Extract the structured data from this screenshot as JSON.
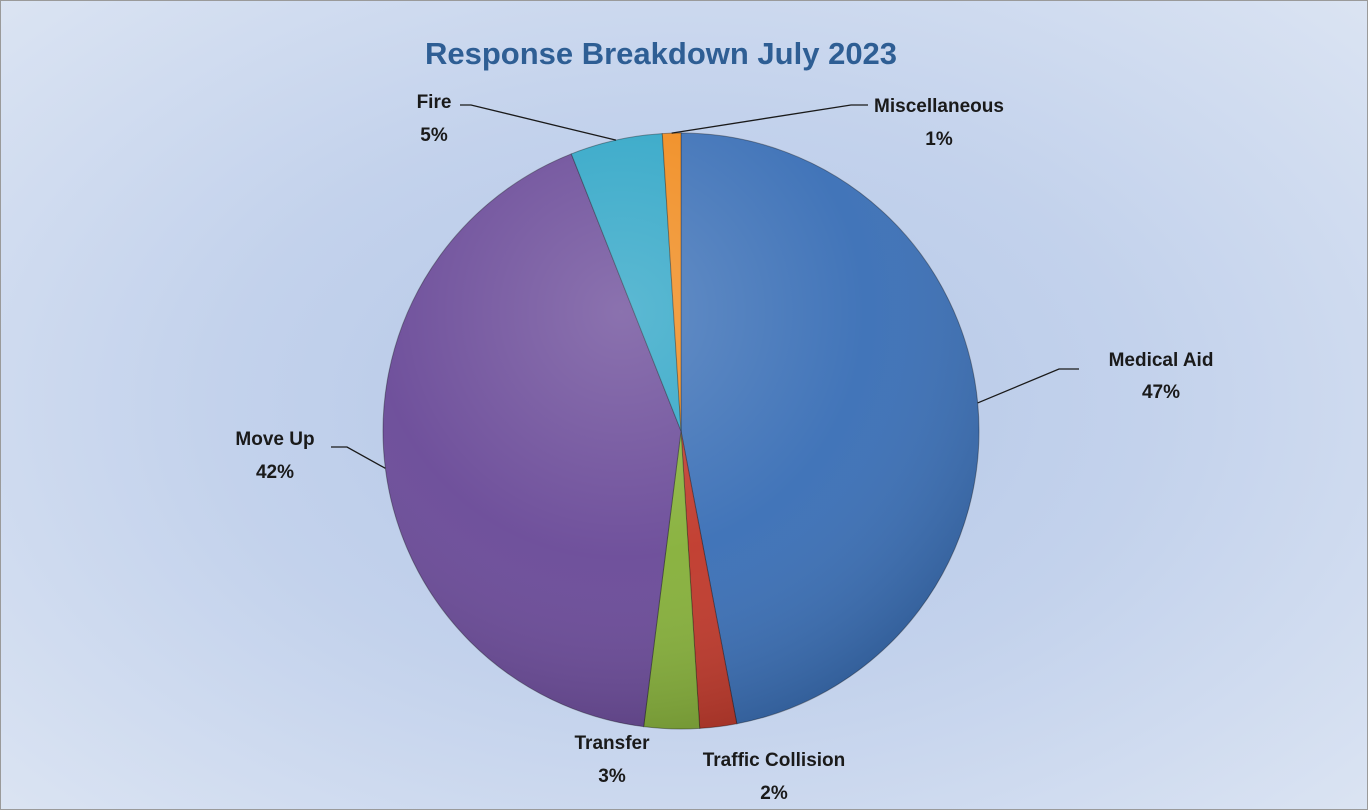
{
  "chart_data": {
    "type": "pie",
    "title": "Response Breakdown July 2023",
    "slices": [
      {
        "label": "Medical Aid",
        "value": 47,
        "value_label": "47%",
        "color": "#3a6fb6"
      },
      {
        "label": "Traffic Collision",
        "value": 2,
        "value_label": "2%",
        "color": "#c0392b"
      },
      {
        "label": "Transfer",
        "value": 3,
        "value_label": "3%",
        "color": "#86b03a"
      },
      {
        "label": "Move Up",
        "value": 42,
        "value_label": "42%",
        "color": "#6a4a98"
      },
      {
        "label": "Fire",
        "value": 5,
        "value_label": "5%",
        "color": "#2ea5c6"
      },
      {
        "label": "Miscellaneous",
        "value": 1,
        "value_label": "1%",
        "color": "#f08a1c"
      }
    ],
    "legend": "none",
    "start_angle": "12 o'clock",
    "direction": "clockwise"
  }
}
